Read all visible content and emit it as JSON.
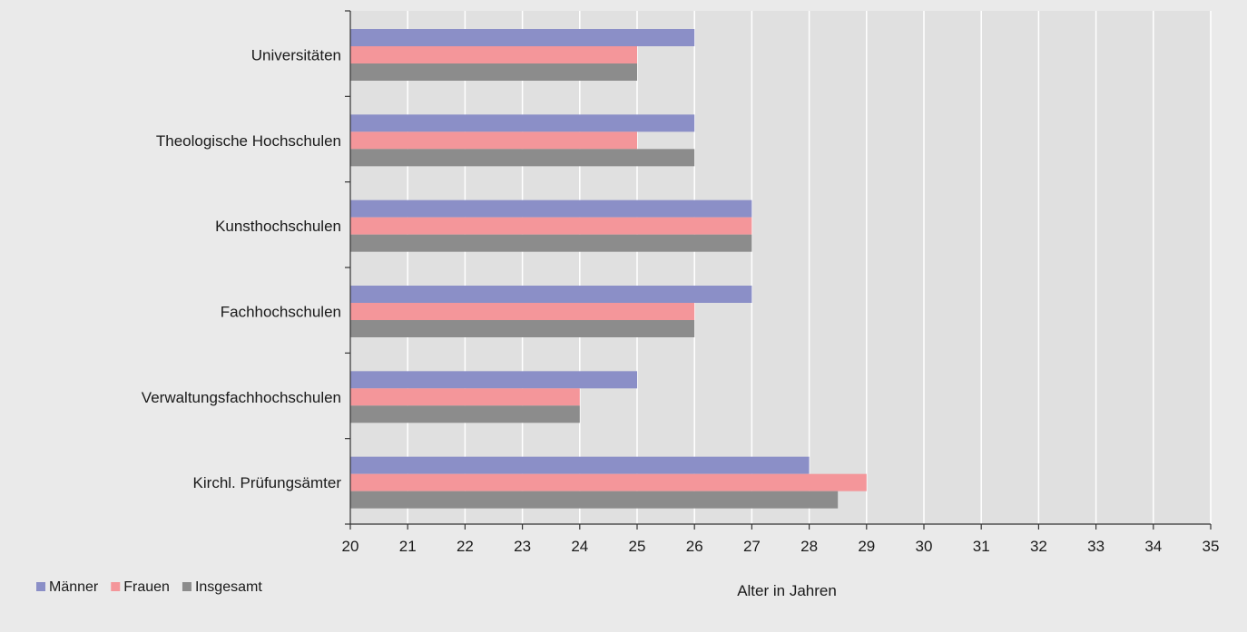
{
  "chart_data": {
    "type": "bar",
    "orientation": "horizontal",
    "categories": [
      "Universitäten",
      "Theologische Hochschulen",
      "Kunsthochschulen",
      "Fachhochschulen",
      "Verwaltungsfachhochschulen",
      "Kirchl. Prüfungsämter"
    ],
    "series": [
      {
        "name": "Männer",
        "color": "#8b8fc7",
        "values": [
          26,
          26,
          27,
          27,
          25,
          28
        ]
      },
      {
        "name": "Frauen",
        "color": "#f4969a",
        "values": [
          25,
          25,
          27,
          26,
          24,
          29
        ]
      },
      {
        "name": "Insgesamt",
        "color": "#8c8c8c",
        "values": [
          25,
          26,
          27,
          26,
          24,
          28.5
        ]
      }
    ],
    "xlim": [
      20,
      35
    ],
    "xticks": [
      "20",
      "21",
      "22",
      "23",
      "24",
      "25",
      "26",
      "27",
      "28",
      "29",
      "30",
      "31",
      "32",
      "33",
      "34",
      "35"
    ],
    "xlabel": "Alter in Jahren",
    "ylabel": "",
    "title": "",
    "grid": "vertical",
    "legend": "bottom-left",
    "plot_background": "#e0e0e0",
    "grid_color": "#ffffff"
  }
}
